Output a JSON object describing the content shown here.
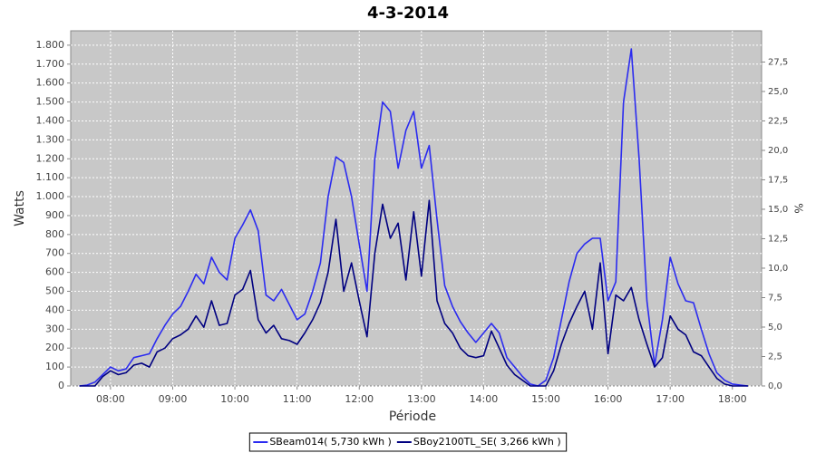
{
  "chart_data": {
    "type": "line",
    "title": "4-3-2014",
    "xlabel": "Période",
    "ylabel": "Watts",
    "y2label": "%",
    "grid": true,
    "legend": "bottom",
    "x": [
      7.5,
      7.625,
      7.75,
      7.875,
      8,
      8.125,
      8.25,
      8.375,
      8.5,
      8.625,
      8.75,
      8.875,
      9,
      9.125,
      9.25,
      9.375,
      9.5,
      9.625,
      9.75,
      9.875,
      10,
      10.125,
      10.25,
      10.375,
      10.5,
      10.625,
      10.75,
      10.875,
      11,
      11.125,
      11.25,
      11.375,
      11.5,
      11.625,
      11.75,
      11.875,
      12,
      12.125,
      12.25,
      12.375,
      12.5,
      12.625,
      12.75,
      12.875,
      13,
      13.125,
      13.25,
      13.375,
      13.5,
      13.625,
      13.75,
      13.875,
      14,
      14.125,
      14.25,
      14.375,
      14.5,
      14.625,
      14.75,
      14.875,
      15,
      15.125,
      15.25,
      15.375,
      15.5,
      15.625,
      15.75,
      15.875,
      16,
      16.125,
      16.25,
      16.375,
      16.5,
      16.625,
      16.75,
      16.875,
      17,
      17.125,
      17.25,
      17.375,
      17.5,
      17.625,
      17.75,
      17.875,
      18,
      18.125,
      18.25
    ],
    "series": [
      {
        "name": "SBeam014( 5,730 kWh )",
        "color": "#2b2bf0",
        "values": [
          0,
          5,
          20,
          60,
          100,
          80,
          90,
          150,
          160,
          170,
          250,
          320,
          380,
          420,
          500,
          590,
          540,
          680,
          600,
          560,
          780,
          850,
          930,
          820,
          480,
          450,
          510,
          430,
          350,
          380,
          500,
          650,
          1000,
          1210,
          1180,
          1000,
          750,
          500,
          1200,
          1500,
          1450,
          1150,
          1350,
          1450,
          1150,
          1270,
          880,
          530,
          420,
          340,
          280,
          230,
          280,
          330,
          280,
          150,
          100,
          50,
          10,
          0,
          30,
          150,
          350,
          550,
          700,
          750,
          780,
          780,
          450,
          550,
          1500,
          1780,
          1200,
          450,
          110,
          350,
          680,
          540,
          450,
          440,
          300,
          170,
          70,
          30,
          10,
          5,
          0
        ]
      },
      {
        "name": "SBoy2100TL_SE( 3,266 kWh )",
        "color": "#000080",
        "values": [
          0,
          0,
          0,
          50,
          80,
          60,
          70,
          110,
          120,
          100,
          180,
          200,
          250,
          270,
          300,
          370,
          310,
          450,
          320,
          330,
          480,
          510,
          610,
          350,
          280,
          320,
          250,
          240,
          220,
          280,
          350,
          440,
          600,
          880,
          500,
          650,
          450,
          260,
          700,
          960,
          780,
          860,
          560,
          920,
          580,
          980,
          450,
          330,
          280,
          200,
          160,
          150,
          160,
          290,
          200,
          110,
          60,
          30,
          0,
          0,
          0,
          80,
          220,
          330,
          420,
          500,
          300,
          650,
          170,
          480,
          450,
          520,
          350,
          220,
          100,
          150,
          370,
          300,
          270,
          180,
          160,
          100,
          40,
          10,
          0,
          0,
          0
        ]
      }
    ],
    "xlim": [
      7.36,
      18.47
    ],
    "xticks": [
      {
        "value": 8,
        "label": "08:00"
      },
      {
        "value": 9,
        "label": "09:00"
      },
      {
        "value": 10,
        "label": "10:00"
      },
      {
        "value": 11,
        "label": "11:00"
      },
      {
        "value": 12,
        "label": "12:00"
      },
      {
        "value": 13,
        "label": "13:00"
      },
      {
        "value": 14,
        "label": "14:00"
      },
      {
        "value": 15,
        "label": "15:00"
      },
      {
        "value": 16,
        "label": "16:00"
      },
      {
        "value": 17,
        "label": "17:00"
      },
      {
        "value": 18,
        "label": "18:00"
      }
    ],
    "ylim": [
      0,
      1876
    ],
    "yticks": [
      0,
      100,
      200,
      300,
      400,
      500,
      600,
      700,
      800,
      900,
      {
        "value": 1000,
        "label": "1.000"
      },
      {
        "value": 1100,
        "label": "1.100"
      },
      {
        "value": 1200,
        "label": "1.200"
      },
      {
        "value": 1300,
        "label": "1.300"
      },
      {
        "value": 1400,
        "label": "1.400"
      },
      {
        "value": 1500,
        "label": "1.500"
      },
      {
        "value": 1600,
        "label": "1.600"
      },
      {
        "value": 1700,
        "label": "1.700"
      },
      {
        "value": 1800,
        "label": "1.800"
      }
    ],
    "y2lim": [
      0,
      30.15
    ],
    "y2ticks": [
      {
        "value": 0,
        "label": "0,0"
      },
      {
        "value": 2.5,
        "label": "2,5"
      },
      {
        "value": 5,
        "label": "5,0"
      },
      {
        "value": 7.5,
        "label": "7,5"
      },
      {
        "value": 10,
        "label": "10,0"
      },
      {
        "value": 12.5,
        "label": "12,5"
      },
      {
        "value": 15,
        "label": "15,0"
      },
      {
        "value": 17.5,
        "label": "17,5"
      },
      {
        "value": 20,
        "label": "20,0"
      },
      {
        "value": 22.5,
        "label": "22,5"
      },
      {
        "value": 25,
        "label": "25,0"
      },
      {
        "value": 27.5,
        "label": "27,5"
      }
    ]
  }
}
